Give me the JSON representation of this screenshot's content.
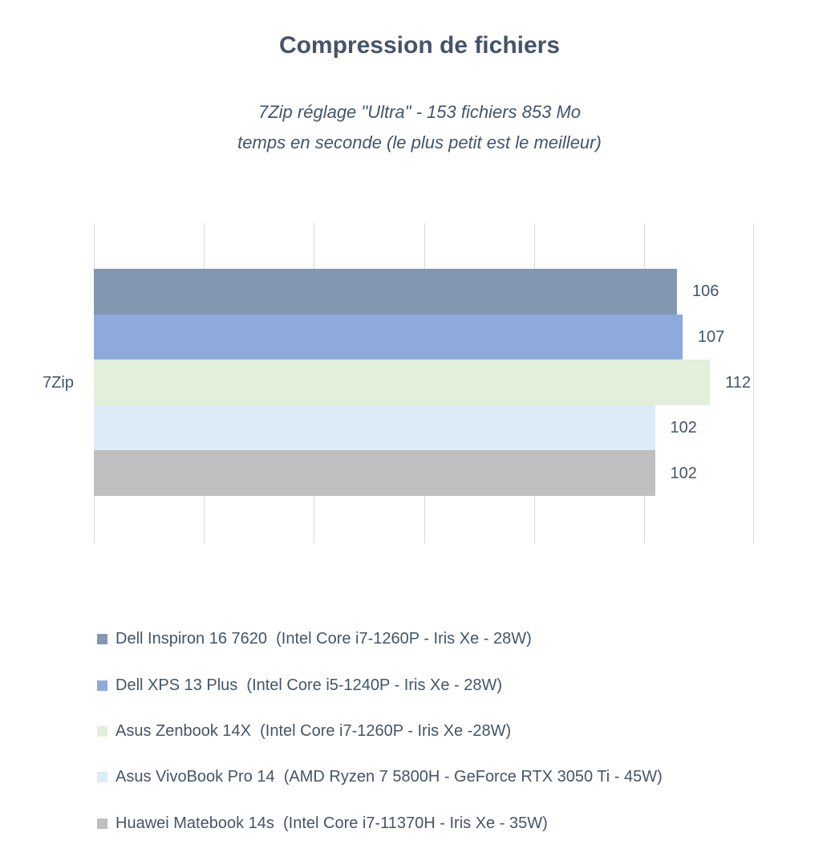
{
  "title": "Compression de fichiers",
  "subtitle_line1": "7Zip réglage \"Ultra\" - 153 fichiers 853 Mo",
  "subtitle_line2": "temps en seconde (le plus petit est le meilleur)",
  "colors": {
    "text": "#44546A",
    "gridline": "#D9D9D9",
    "background": "#FFFFFF"
  },
  "chart_data": {
    "type": "bar",
    "orientation": "horizontal",
    "title": "Compression de fichiers",
    "subtitle": "7Zip réglage \"Ultra\" - 153 fichiers 853 Mo temps en seconde (le plus petit est le meilleur)",
    "categories": [
      "7Zip"
    ],
    "xlim": [
      0,
      120
    ],
    "grid_step": 20,
    "grid": true,
    "legend_position": "bottom-left",
    "value_labels": true,
    "series": [
      {
        "name": "Dell Inspiron 16 7620  (Intel Core i7-1260P - Iris Xe - 28W)",
        "values": [
          106
        ],
        "color": "#8497B0"
      },
      {
        "name": "Dell XPS 13 Plus  (Intel Core i5-1240P - Iris Xe - 28W)",
        "values": [
          107
        ],
        "color": "#8EA9DB"
      },
      {
        "name": "Asus Zenbook 14X  (Intel Core i7-1260P - Iris Xe -28W)",
        "values": [
          112
        ],
        "color": "#E2EFDA"
      },
      {
        "name": "Asus VivoBook Pro 14  (AMD Ryzen 7 5800H - GeForce RTX 3050 Ti - 45W)",
        "values": [
          102
        ],
        "color": "#DDEBF7"
      },
      {
        "name": "Huawei Matebook 14s  (Intel Core i7-11370H - Iris Xe - 35W)",
        "values": [
          102
        ],
        "color": "#BFBFBF"
      }
    ]
  }
}
